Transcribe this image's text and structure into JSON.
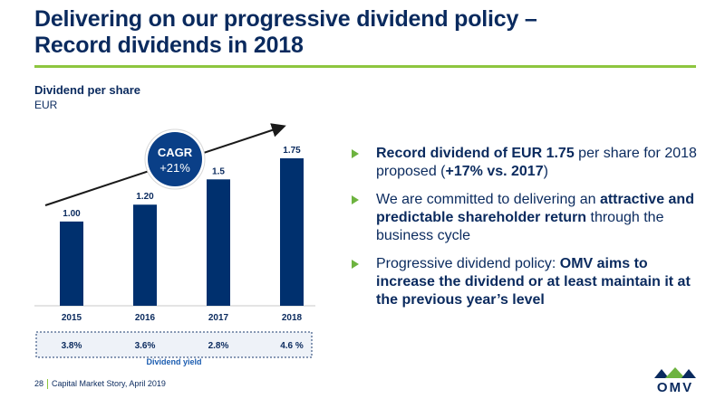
{
  "title": {
    "line1": "Delivering on our progressive dividend policy –",
    "line2": "Record dividends in 2018"
  },
  "chart_data": {
    "type": "bar",
    "title": "Dividend per share",
    "ylabel": "EUR",
    "categories": [
      "2015",
      "2016",
      "2017",
      "2018"
    ],
    "values": [
      1.0,
      1.2,
      1.5,
      1.75
    ],
    "value_labels": [
      "1.00",
      "1.20",
      "1.5",
      "1.75"
    ],
    "ylim": [
      0,
      1.75
    ],
    "bar_color": "#00306e",
    "grid": false,
    "annotation": {
      "label1": "CAGR",
      "label2": "+21%",
      "circle_color": "#0a3f87"
    },
    "yield": {
      "label": "Dividend yield",
      "values": [
        "3.8%",
        "3.6%",
        "2.8%",
        "4.6 %"
      ]
    }
  },
  "bullets": [
    [
      {
        "text": "Record dividend of EUR 1.75",
        "bold": true
      },
      {
        "text": " per share for 2018 proposed (",
        "bold": false
      },
      {
        "text": "+17% vs. 2017",
        "bold": true
      },
      {
        "text": ")",
        "bold": false
      }
    ],
    [
      {
        "text": "We are committed to delivering an ",
        "bold": false
      },
      {
        "text": "attractive and predictable shareholder return",
        "bold": true
      },
      {
        "text": " through the business cycle",
        "bold": false
      }
    ],
    [
      {
        "text": "Progressive dividend policy: ",
        "bold": false
      },
      {
        "text": "OMV aims to increase the dividend or at least maintain it at the previous year’s level",
        "bold": true
      }
    ]
  ],
  "footer": {
    "page": "28",
    "text": "Capital Market Story, April 2019"
  },
  "logo": {
    "word": "OMV",
    "color_green": "#6db33f",
    "color_blue": "#0a2a5e"
  }
}
